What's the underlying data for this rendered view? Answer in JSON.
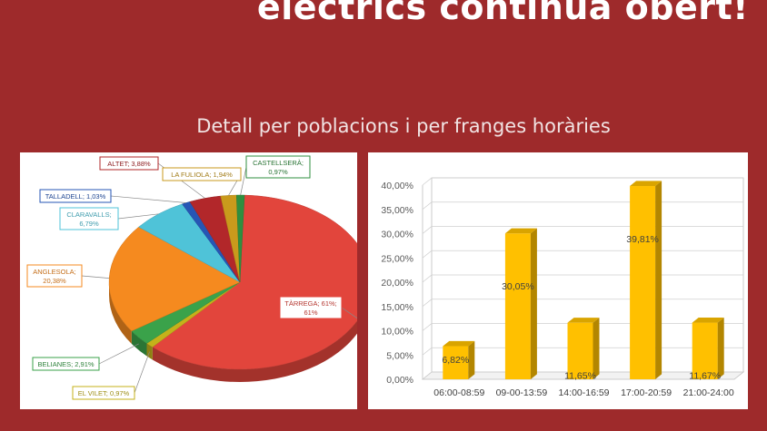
{
  "header": {
    "headline": "elèctrics continua obert!",
    "subtitle": "Detall per poblacions i per franges horàries"
  },
  "chart_data": [
    {
      "type": "pie",
      "slices": [
        {
          "label": "TÀRREGA; 61%; 61%",
          "value": 61,
          "color": "#e2453c"
        },
        {
          "label": "EL VILET; 0,97%",
          "value": 0.97,
          "color": "#c4b21a"
        },
        {
          "label": "BELIANES; 2,91%",
          "value": 2.91,
          "color": "#3aa24a"
        },
        {
          "label": "ANGLESOLA; 20,38%",
          "value": 20.38,
          "color": "#f58a1f"
        },
        {
          "label": "CLARAVALLS; 6,79%",
          "value": 6.79,
          "color": "#4fc3d8"
        },
        {
          "label": "TALLADELL; 1,03%",
          "value": 1.03,
          "color": "#2656b5"
        },
        {
          "label": "ALTET; 3,88%",
          "value": 3.88,
          "color": "#b2272a"
        },
        {
          "label": "LA FULIOLA; 1,94%",
          "value": 1.94,
          "color": "#c99a1c"
        },
        {
          "label": "CASTELLSERÀ; 0,97%",
          "value": 0.97,
          "color": "#2f8f3f"
        }
      ]
    },
    {
      "type": "bar",
      "categories": [
        "06:00-08:59",
        "09-00-13:59",
        "14:00-16:59",
        "17:00-20:59",
        "21:00-24:00"
      ],
      "values": [
        6.82,
        30.05,
        11.65,
        39.81,
        11.67
      ],
      "value_labels": [
        "6,82%",
        "30,05%",
        "11,65%",
        "39,81%",
        "11,67%"
      ],
      "ylim": [
        0,
        40
      ],
      "yticks": [
        "0,00%",
        "5,00%",
        "10,00%",
        "15,00%",
        "20,00%",
        "25,00%",
        "30,00%",
        "35,00%",
        "40,00%"
      ],
      "grid": true,
      "bar_color": "#ffc000"
    }
  ]
}
